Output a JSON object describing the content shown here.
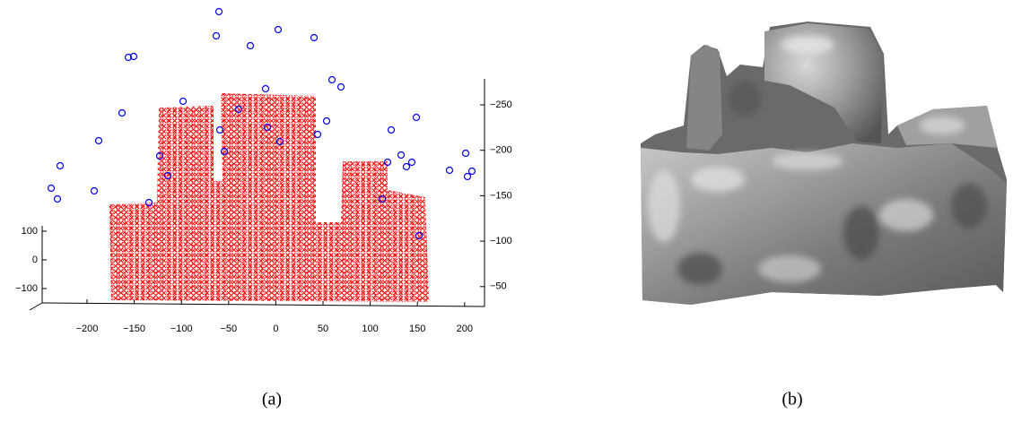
{
  "figure": {
    "a": {
      "caption": "(a)",
      "x_ticks": [
        "−200",
        "−150",
        "−100",
        "−50",
        "0",
        "50",
        "100",
        "150",
        "200"
      ],
      "y_ticks": [
        "100",
        "0",
        "−100"
      ],
      "z_ticks": [
        "−250",
        "−200",
        "−150",
        "−100",
        "−50"
      ]
    },
    "b": {
      "caption": "(b)"
    }
  }
}
